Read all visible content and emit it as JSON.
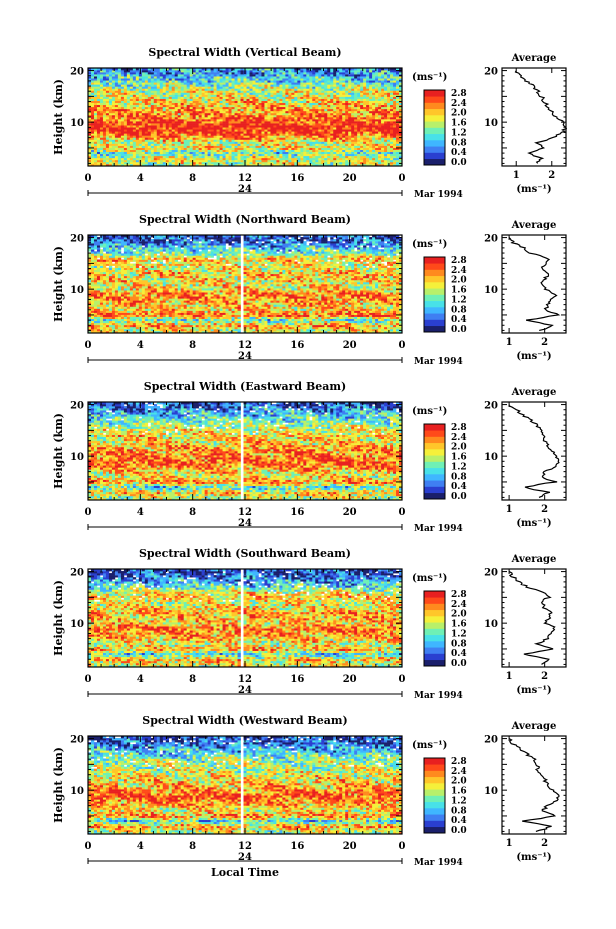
{
  "figure": {
    "time_axis_label": "Local Time",
    "date_month": "Mar 1994",
    "date_day": "24",
    "unit_label": "(ms⁻¹)",
    "ylabel": "Height (km)",
    "profile_title": "Average",
    "profile_xlabel": "(ms⁻¹)",
    "colorbar_ticks": [
      "0.0",
      "0.4",
      "0.8",
      "1.2",
      "1.6",
      "2.0",
      "2.4",
      "2.8"
    ],
    "colormap": [
      "#1a1f6b",
      "#2a3fd0",
      "#3f7ff2",
      "#3fb6ff",
      "#48e1e8",
      "#6ff0b5",
      "#b8f06a",
      "#f5f03a",
      "#ffc62a",
      "#ff8a1e",
      "#ff4a1a",
      "#e82020"
    ]
  },
  "chart_data": [
    {
      "type": "heatmap",
      "title": "Spectral Width (Vertical Beam)",
      "xlabel": "",
      "ylabel": "Height (km)",
      "x_ticks": [
        "0",
        "4",
        "8",
        "12",
        "16",
        "20",
        "0"
      ],
      "xlim": [
        0,
        24
      ],
      "y_ticks": [
        "10",
        "20"
      ],
      "ylim": [
        1.5,
        20.5
      ],
      "colorbar": {
        "label": "(ms⁻¹)",
        "range": [
          0.0,
          2.8
        ],
        "ticks": [
          "0.0",
          "0.4",
          "0.8",
          "1.2",
          "1.6",
          "2.0",
          "2.4",
          "2.8"
        ]
      },
      "gap_hour": null,
      "profile": {
        "title": "Average",
        "xlabel": "(ms⁻¹)",
        "x_ticks": [
          "1",
          "2"
        ],
        "xlim": [
          0.6,
          2.4
        ],
        "heights": [
          2,
          3,
          4,
          5,
          6,
          7,
          8,
          9,
          10,
          11,
          12,
          13,
          14,
          15,
          16,
          17,
          18,
          19,
          20
        ],
        "values": [
          1.6,
          1.7,
          1.3,
          1.8,
          1.6,
          2.0,
          2.3,
          2.4,
          2.3,
          2.1,
          2.0,
          1.9,
          1.8,
          1.7,
          1.6,
          1.5,
          1.3,
          1.1,
          1.0
        ]
      }
    },
    {
      "type": "heatmap",
      "title": "Spectral Width (Northward Beam)",
      "xlabel": "",
      "ylabel": "Height (km)",
      "x_ticks": [
        "0",
        "4",
        "8",
        "12",
        "16",
        "20",
        "0"
      ],
      "xlim": [
        0,
        24
      ],
      "y_ticks": [
        "10",
        "20"
      ],
      "ylim": [
        1.5,
        20.5
      ],
      "colorbar": {
        "label": "(ms⁻¹)",
        "range": [
          0.0,
          2.8
        ],
        "ticks": [
          "0.0",
          "0.4",
          "0.8",
          "1.2",
          "1.6",
          "2.0",
          "2.4",
          "2.8"
        ]
      },
      "gap_hour": 11.8,
      "profile": {
        "title": "Average",
        "xlabel": "(ms⁻¹)",
        "x_ticks": [
          "1",
          "2"
        ],
        "xlim": [
          0.8,
          2.6
        ],
        "heights": [
          2,
          3,
          4,
          5,
          6,
          7,
          8,
          9,
          10,
          11,
          12,
          13,
          14,
          15,
          16,
          17,
          18,
          19,
          20
        ],
        "values": [
          1.9,
          2.2,
          1.5,
          2.4,
          2.0,
          2.1,
          2.2,
          2.3,
          2.0,
          1.9,
          2.0,
          2.1,
          1.9,
          2.0,
          2.1,
          1.6,
          1.4,
          1.1,
          1.0
        ]
      }
    },
    {
      "type": "heatmap",
      "title": "Spectral Width (Eastward Beam)",
      "xlabel": "",
      "ylabel": "Height (km)",
      "x_ticks": [
        "0",
        "4",
        "8",
        "12",
        "16",
        "20",
        "0"
      ],
      "xlim": [
        0,
        24
      ],
      "y_ticks": [
        "10",
        "20"
      ],
      "ylim": [
        1.5,
        20.5
      ],
      "colorbar": {
        "label": "(ms⁻¹)",
        "range": [
          0.0,
          2.8
        ],
        "ticks": [
          "0.0",
          "0.4",
          "0.8",
          "1.2",
          "1.6",
          "2.0",
          "2.4",
          "2.8"
        ]
      },
      "gap_hour": 11.8,
      "profile": {
        "title": "Average",
        "xlabel": "(ms⁻¹)",
        "x_ticks": [
          "1",
          "2"
        ],
        "xlim": [
          0.8,
          2.6
        ],
        "heights": [
          2,
          3,
          4,
          5,
          6,
          7,
          8,
          9,
          10,
          11,
          12,
          13,
          14,
          15,
          16,
          17,
          18,
          19,
          20
        ],
        "values": [
          1.8,
          2.1,
          1.4,
          2.3,
          1.9,
          2.0,
          2.3,
          2.4,
          2.3,
          2.2,
          2.1,
          2.0,
          2.0,
          1.9,
          1.8,
          1.6,
          1.4,
          1.2,
          1.0
        ]
      }
    },
    {
      "type": "heatmap",
      "title": "Spectral Width (Southward Beam)",
      "xlabel": "",
      "ylabel": "Height (km)",
      "x_ticks": [
        "0",
        "4",
        "8",
        "12",
        "16",
        "20",
        "0"
      ],
      "xlim": [
        0,
        24
      ],
      "y_ticks": [
        "10",
        "20"
      ],
      "ylim": [
        1.5,
        20.5
      ],
      "colorbar": {
        "label": "(ms⁻¹)",
        "range": [
          0.0,
          2.8
        ],
        "ticks": [
          "0.0",
          "0.4",
          "0.8",
          "1.2",
          "1.6",
          "2.0",
          "2.4",
          "2.8"
        ]
      },
      "gap_hour": 11.8,
      "profile": {
        "title": "Average",
        "xlabel": "(ms⁻¹)",
        "x_ticks": [
          "1",
          "2"
        ],
        "xlim": [
          0.8,
          2.6
        ],
        "heights": [
          2,
          3,
          4,
          5,
          6,
          7,
          8,
          9,
          10,
          11,
          12,
          13,
          14,
          15,
          16,
          17,
          18,
          19,
          20
        ],
        "values": [
          1.9,
          2.1,
          1.4,
          2.2,
          1.8,
          2.1,
          2.2,
          2.3,
          2.0,
          2.1,
          2.2,
          2.0,
          1.9,
          2.1,
          2.0,
          1.5,
          1.3,
          1.1,
          1.0
        ]
      }
    },
    {
      "type": "heatmap",
      "title": "Spectral Width (Westward Beam)",
      "xlabel": "Local Time",
      "ylabel": "Height (km)",
      "x_ticks": [
        "0",
        "4",
        "8",
        "12",
        "16",
        "20",
        "0"
      ],
      "xlim": [
        0,
        24
      ],
      "y_ticks": [
        "10",
        "20"
      ],
      "ylim": [
        1.5,
        20.5
      ],
      "colorbar": {
        "label": "(ms⁻¹)",
        "range": [
          0.0,
          2.8
        ],
        "ticks": [
          "0.0",
          "0.4",
          "0.8",
          "1.2",
          "1.6",
          "2.0",
          "2.4",
          "2.8"
        ]
      },
      "gap_hour": 11.8,
      "profile": {
        "title": "Average",
        "xlabel": "(ms⁻¹)",
        "x_ticks": [
          "1",
          "2"
        ],
        "xlim": [
          0.8,
          2.6
        ],
        "heights": [
          2,
          3,
          4,
          5,
          6,
          7,
          8,
          9,
          10,
          11,
          12,
          13,
          14,
          15,
          16,
          17,
          18,
          19,
          20
        ],
        "values": [
          1.8,
          2.2,
          1.4,
          2.3,
          1.9,
          2.1,
          2.3,
          2.4,
          2.2,
          2.1,
          2.0,
          1.9,
          1.8,
          1.8,
          1.7,
          1.5,
          1.3,
          1.1,
          1.0
        ]
      }
    }
  ]
}
